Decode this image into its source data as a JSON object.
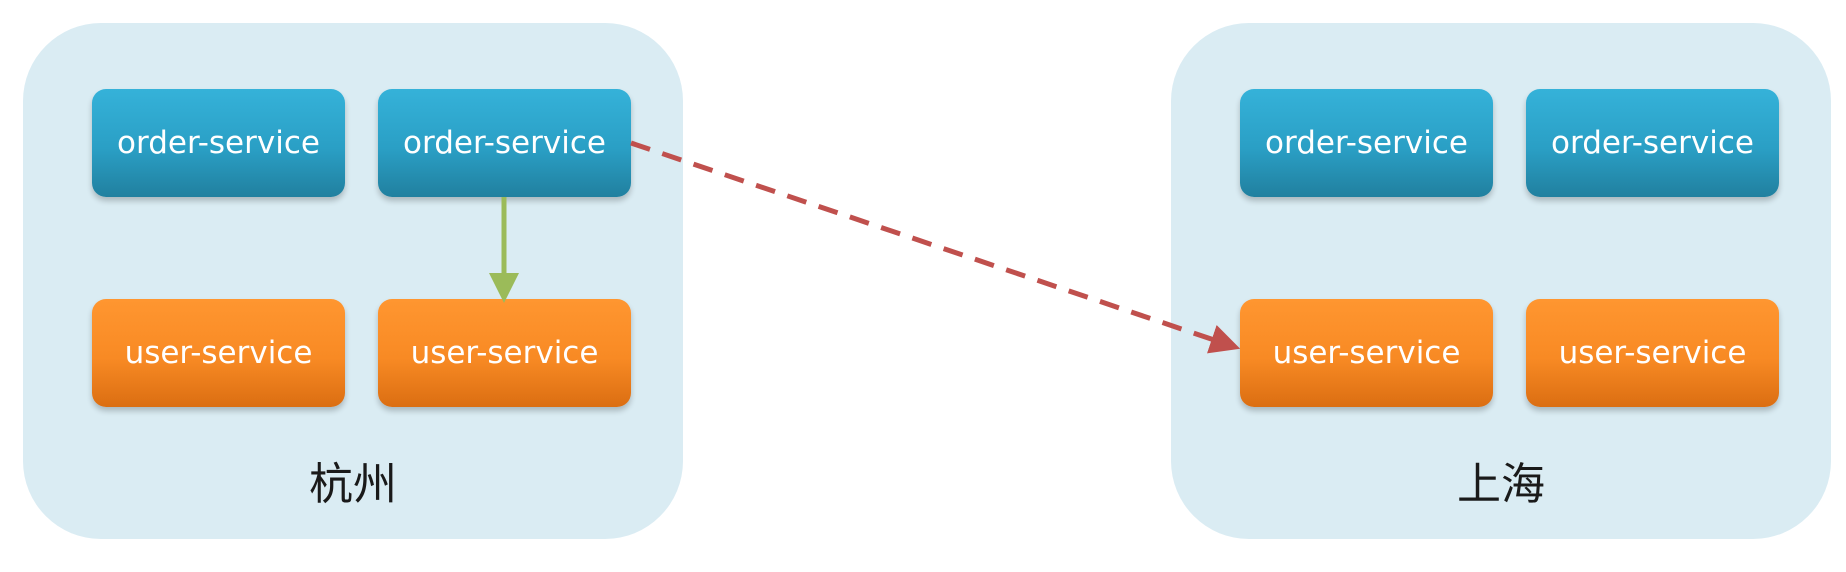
{
  "regions": [
    {
      "name": "杭州",
      "services": {
        "order_1": "order-service",
        "order_2": "order-service",
        "user_1": "user-service",
        "user_2": "user-service"
      }
    },
    {
      "name": "上海",
      "services": {
        "order_1": "order-service",
        "order_2": "order-service",
        "user_1": "user-service",
        "user_2": "user-service"
      }
    }
  ],
  "colors": {
    "cluster_bg": "#daecf3",
    "order_service": "#2a9fc5",
    "user_service": "#f88a24",
    "local_call_arrow": "#9bbb59",
    "cross_region_call_arrow": "#c0504d"
  }
}
